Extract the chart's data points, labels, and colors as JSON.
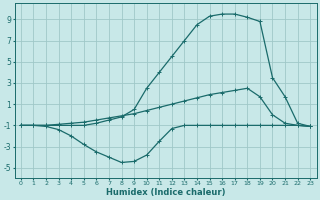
{
  "xlabel": "Humidex (Indice chaleur)",
  "bg_color": "#c8e8e8",
  "grid_color": "#a0c8c8",
  "line_color": "#1a6b6b",
  "line1_x": [
    0,
    1,
    2,
    3,
    4,
    5,
    6,
    7,
    8,
    9,
    10,
    11,
    12,
    13,
    14,
    15,
    16,
    17,
    18,
    19,
    20,
    21,
    22,
    23
  ],
  "line1_y": [
    -1.0,
    -1.0,
    -1.0,
    -0.9,
    -0.8,
    -0.7,
    -0.5,
    -0.3,
    -0.1,
    0.1,
    0.4,
    0.7,
    1.0,
    1.3,
    1.6,
    1.9,
    2.1,
    2.3,
    2.5,
    1.7,
    0.0,
    -0.8,
    -1.0,
    -1.1
  ],
  "line2_x": [
    0,
    1,
    2,
    3,
    4,
    5,
    6,
    7,
    8,
    9,
    10,
    11,
    12,
    13,
    14,
    15,
    16,
    17,
    18,
    19,
    20,
    21,
    22,
    23
  ],
  "line2_y": [
    -1.0,
    -1.0,
    -1.1,
    -1.4,
    -2.0,
    -2.8,
    -3.5,
    -4.0,
    -4.5,
    -4.4,
    -3.8,
    -2.5,
    -1.3,
    -1.0,
    -1.0,
    -1.0,
    -1.0,
    -1.0,
    -1.0,
    -1.0,
    -1.0,
    -1.0,
    -1.0,
    -1.1
  ],
  "line3_x": [
    0,
    1,
    2,
    3,
    4,
    5,
    6,
    7,
    8,
    9,
    10,
    11,
    12,
    13,
    14,
    15,
    16,
    17,
    18,
    19,
    20,
    21,
    22,
    23
  ],
  "line3_y": [
    -1.0,
    -1.0,
    -1.0,
    -1.0,
    -1.0,
    -1.0,
    -0.8,
    -0.5,
    -0.2,
    0.5,
    2.5,
    4.0,
    5.5,
    7.0,
    8.5,
    9.3,
    9.5,
    9.5,
    9.2,
    8.8,
    3.5,
    1.7,
    -0.8,
    -1.1
  ],
  "xlim": [
    -0.5,
    23.5
  ],
  "ylim": [
    -6.0,
    10.5
  ],
  "yticks": [
    -5,
    -3,
    -1,
    1,
    3,
    5,
    7,
    9
  ],
  "xticks": [
    0,
    1,
    2,
    3,
    4,
    5,
    6,
    7,
    8,
    9,
    10,
    11,
    12,
    13,
    14,
    15,
    16,
    17,
    18,
    19,
    20,
    21,
    22,
    23
  ],
  "figwidth": 3.2,
  "figheight": 2.0,
  "dpi": 100
}
